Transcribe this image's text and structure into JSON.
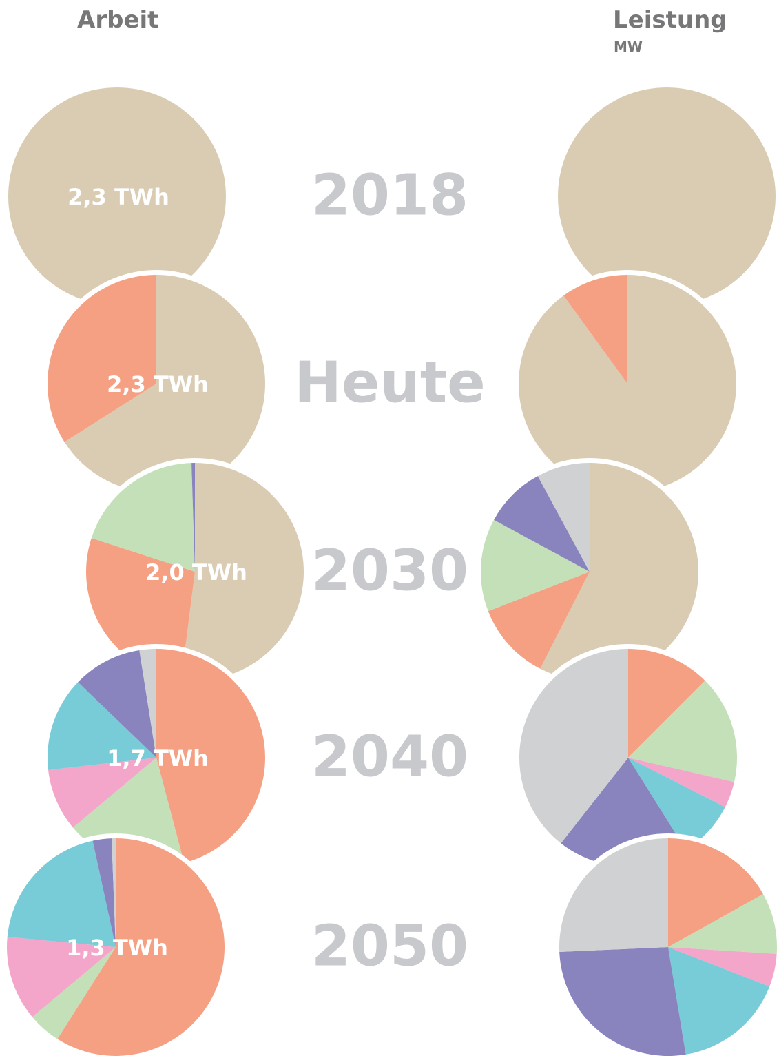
{
  "headers": {
    "left": "Arbeit",
    "right": "Leistung",
    "right_unit": "MW"
  },
  "rows": [
    "2018",
    "Heute",
    "2030",
    "2040",
    "2050"
  ],
  "chart_data": [
    {
      "type": "pie",
      "label": "2,3 TWh",
      "values": [
        100
      ],
      "colors": [
        "#d9ccb2"
      ]
    },
    {
      "type": "pie",
      "values": [
        100
      ],
      "colors": [
        "#d9ccb2"
      ]
    },
    {
      "type": "pie",
      "label": "2,3 TWh",
      "values": [
        66,
        34
      ],
      "colors": [
        "#d9ccb2",
        "#f5a083"
      ]
    },
    {
      "type": "pie",
      "values": [
        90,
        10
      ],
      "colors": [
        "#d9ccb2",
        "#f5a083"
      ]
    },
    {
      "type": "pie",
      "label": "2,0 TWh",
      "values": [
        52,
        28,
        19.5,
        0.5
      ],
      "colors": [
        "#d9ccb2",
        "#f5a083",
        "#c3e0b8",
        "#8a84be"
      ]
    },
    {
      "type": "pie",
      "values": [
        57.5,
        11.6,
        13.8,
        9.2,
        7.9
      ],
      "colors": [
        "#d9ccb2",
        "#f5a083",
        "#c3e0b8",
        "#8a84be",
        "#d0d1d3"
      ]
    },
    {
      "type": "pie",
      "label": "1,7 TWh",
      "values": [
        45.9,
        18,
        9.3,
        14,
        10.3,
        2.5
      ],
      "colors": [
        "#f5a083",
        "#c3e0b8",
        "#f3a6c9",
        "#78ccd8",
        "#8a84be",
        "#d0d1d3"
      ]
    },
    {
      "type": "pie",
      "values": [
        12.5,
        16.1,
        3.9,
        8.6,
        19.5,
        39.4
      ],
      "colors": [
        "#f5a083",
        "#c3e0b8",
        "#f3a6c9",
        "#78ccd8",
        "#8a84be",
        "#d0d1d3"
      ]
    },
    {
      "type": "pie",
      "label": "1,3 TWh",
      "values": [
        59,
        4.9,
        12.6,
        20.1,
        2.8,
        0.6
      ],
      "colors": [
        "#f5a083",
        "#c3e0b8",
        "#f3a6c9",
        "#78ccd8",
        "#8a84be",
        "#d0d1d3"
      ]
    },
    {
      "type": "pie",
      "values": [
        16.9,
        9.1,
        4.9,
        16.5,
        26.9,
        25.7
      ],
      "colors": [
        "#f5a083",
        "#c3e0b8",
        "#f3a6c9",
        "#78ccd8",
        "#8a84be",
        "#d0d1d3"
      ]
    }
  ]
}
